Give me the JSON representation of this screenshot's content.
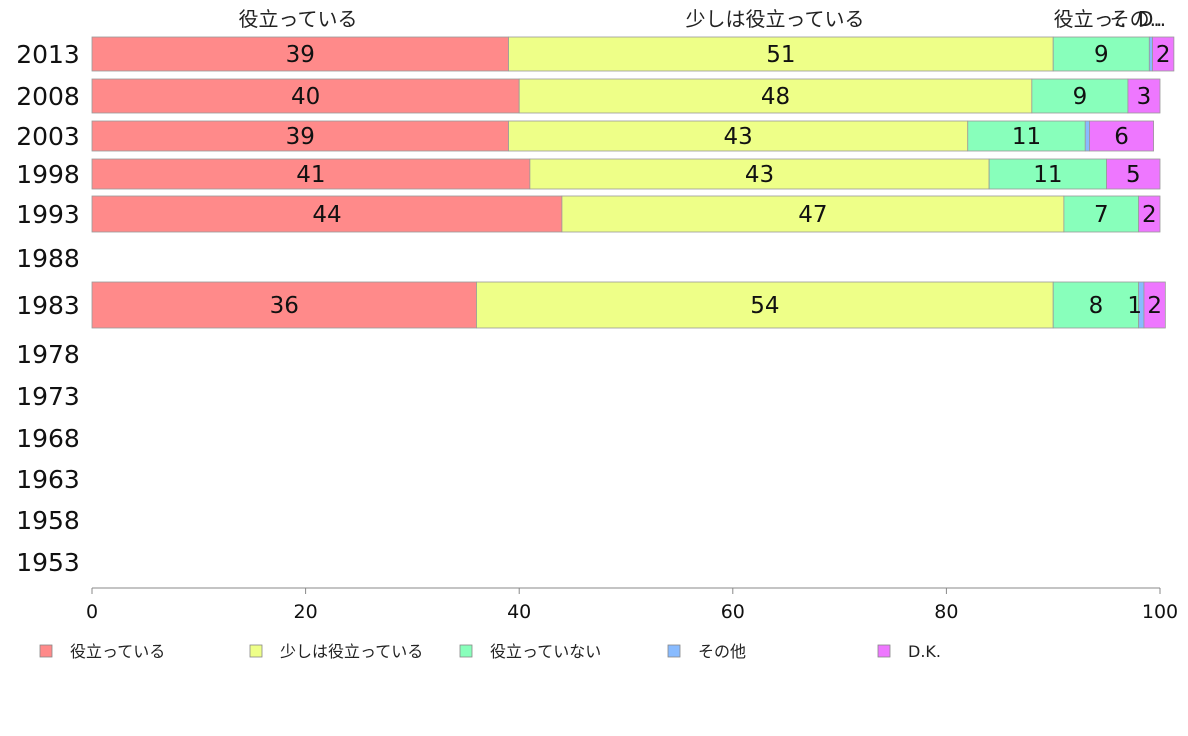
{
  "chart_data": {
    "type": "bar",
    "orientation": "horizontal",
    "stacked": true,
    "categories": [
      "2013",
      "2008",
      "2003",
      "1998",
      "1993",
      "1988",
      "1983",
      "1978",
      "1973",
      "1968",
      "1963",
      "1958",
      "1953"
    ],
    "series": [
      {
        "name": "役立っている",
        "color": "#ff8a8a",
        "values": [
          39,
          40,
          39,
          41,
          44,
          null,
          36,
          null,
          null,
          null,
          null,
          null,
          null
        ],
        "labels": [
          "39",
          "40",
          "39",
          "41",
          "44",
          "",
          "36",
          "",
          "",
          "",
          "",
          "",
          ""
        ]
      },
      {
        "name": "少しは役立っている",
        "color": "#eeff88",
        "values": [
          51,
          48,
          43,
          43,
          47,
          null,
          54,
          null,
          null,
          null,
          null,
          null,
          null
        ],
        "labels": [
          "51",
          "48",
          "43",
          "43",
          "47",
          "",
          "54",
          "",
          "",
          "",
          "",
          "",
          ""
        ]
      },
      {
        "name": "役立っていない",
        "color": "#88ffbb",
        "values": [
          9,
          9,
          11,
          11,
          7,
          null,
          8,
          null,
          null,
          null,
          null,
          null,
          null
        ],
        "labels": [
          "9",
          "9",
          "11",
          "11",
          "7",
          "",
          "8",
          "",
          "",
          "",
          "",
          "",
          ""
        ]
      },
      {
        "name": "その他",
        "color": "#88bbff",
        "values": [
          0.3,
          0,
          0.4,
          0,
          0,
          null,
          0.5,
          null,
          null,
          null,
          null,
          null,
          null
        ],
        "labels": [
          "",
          "",
          "",
          "",
          "",
          "",
          "1",
          "",
          "",
          "",
          "",
          "",
          ""
        ]
      },
      {
        "name": "D.K.",
        "color": "#ee77ff",
        "values": [
          2,
          3,
          6,
          5,
          2,
          null,
          2,
          null,
          null,
          null,
          null,
          null,
          null
        ],
        "labels": [
          "2",
          "3",
          "6",
          "5",
          "2",
          "",
          "2",
          "",
          "",
          "",
          "",
          "",
          ""
        ]
      }
    ],
    "top_labels": [
      "役立っている",
      "少しは役立っている",
      "役立っ..",
      "その..",
      "D.."
    ],
    "xlim": [
      0,
      100
    ],
    "xticks": [
      "0",
      "20",
      "40",
      "60",
      "80",
      "100"
    ],
    "legend_position": "bottom",
    "grid": false
  }
}
